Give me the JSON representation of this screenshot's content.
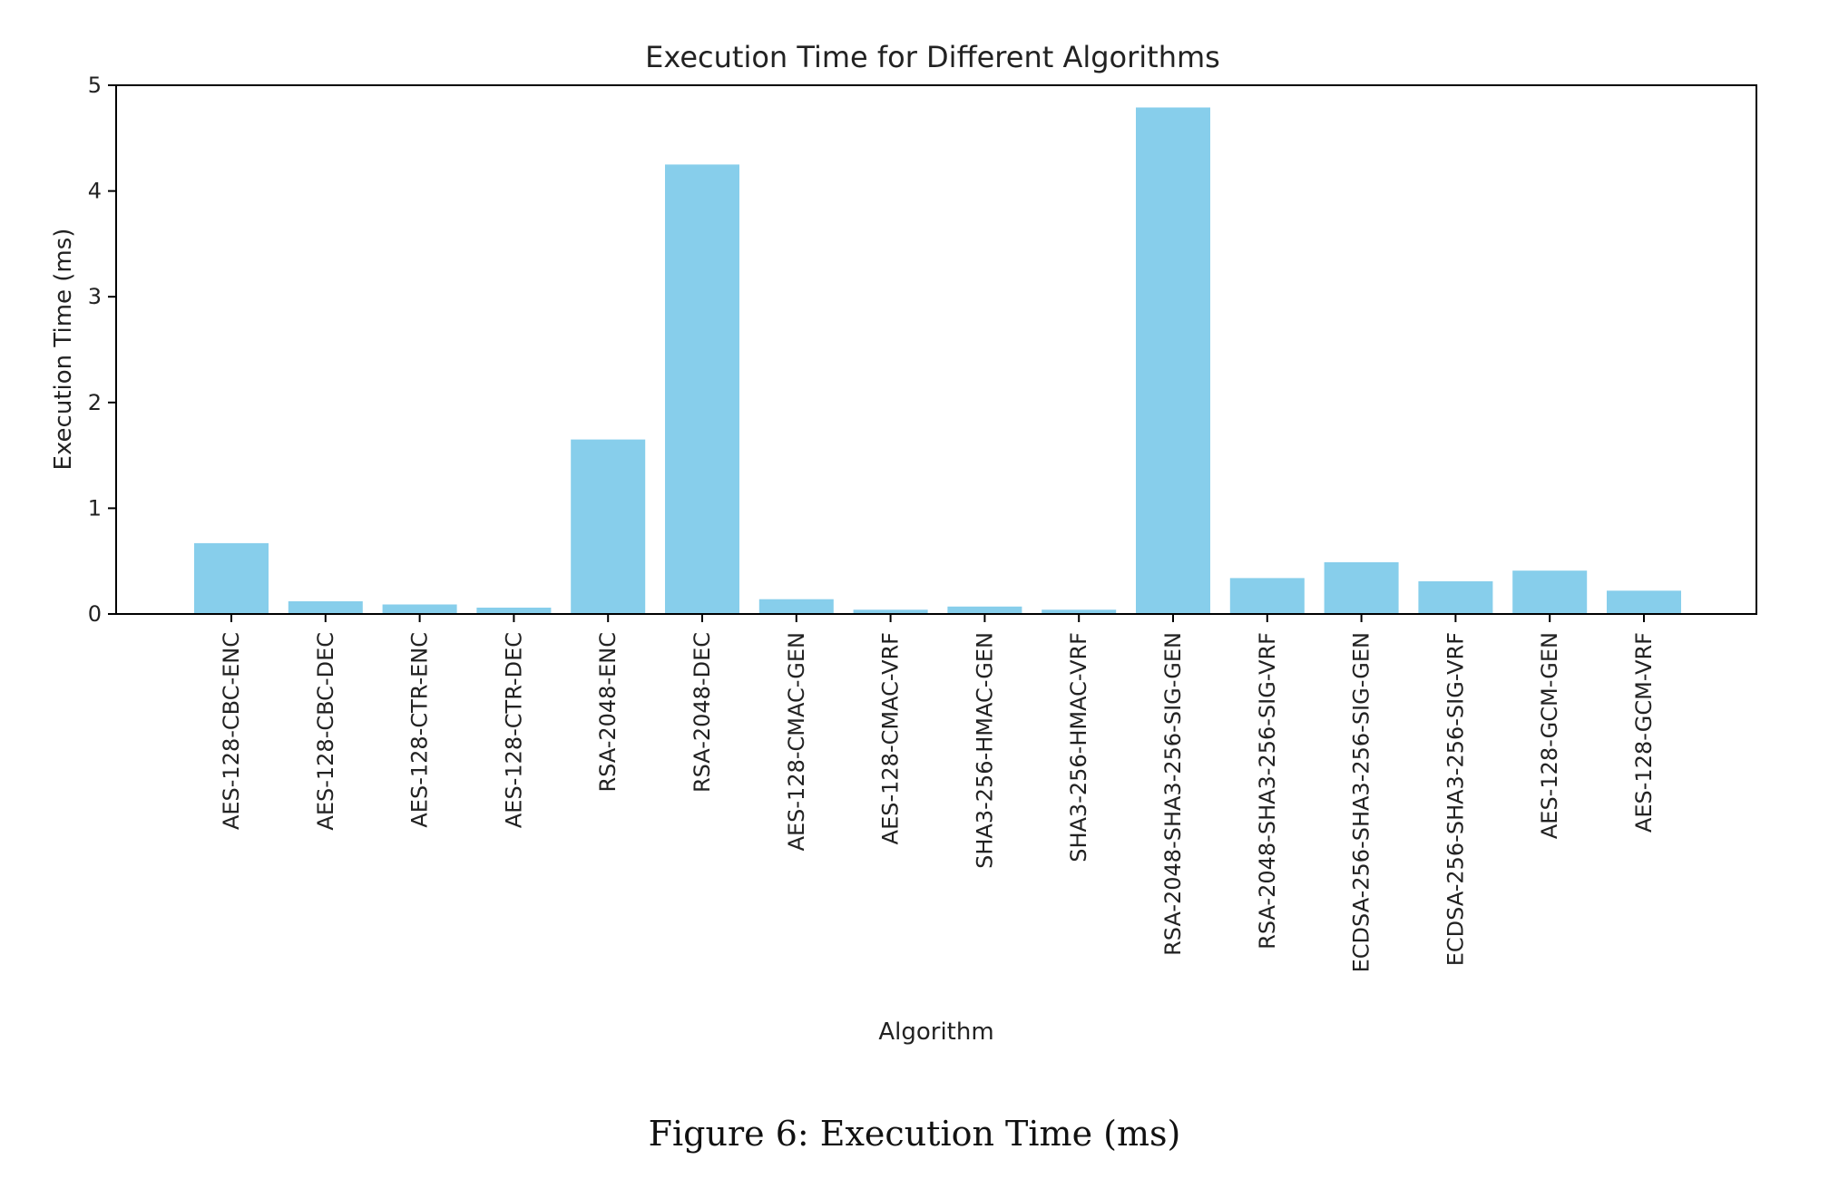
{
  "chart_data": {
    "type": "bar",
    "title": "Execution Time for Different Algorithms",
    "xlabel": "Algorithm",
    "ylabel": "Execution Time (ms)",
    "ylim": [
      0,
      5
    ],
    "yticks": [
      0,
      1,
      2,
      3,
      4,
      5
    ],
    "bar_color": "#87CEEB",
    "categories": [
      "AES-128-CBC-ENC",
      "AES-128-CBC-DEC",
      "AES-128-CTR-ENC",
      "AES-128-CTR-DEC",
      "RSA-2048-ENC",
      "RSA-2048-DEC",
      "AES-128-CMAC-GEN",
      "AES-128-CMAC-VRF",
      "SHA3-256-HMAC-GEN",
      "SHA3-256-HMAC-VRF",
      "RSA-2048-SHA3-256-SIG-GEN",
      "RSA-2048-SHA3-256-SIG-VRF",
      "ECDSA-256-SHA3-256-SIG-GEN",
      "ECDSA-256-SHA3-256-SIG-VRF",
      "AES-128-GCM-GEN",
      "AES-128-GCM-VRF"
    ],
    "values": [
      0.67,
      0.12,
      0.09,
      0.06,
      1.65,
      4.25,
      0.14,
      0.04,
      0.07,
      0.04,
      4.79,
      0.34,
      0.49,
      0.31,
      0.41,
      0.22
    ]
  },
  "caption": "Figure 6: Execution Time (ms)"
}
